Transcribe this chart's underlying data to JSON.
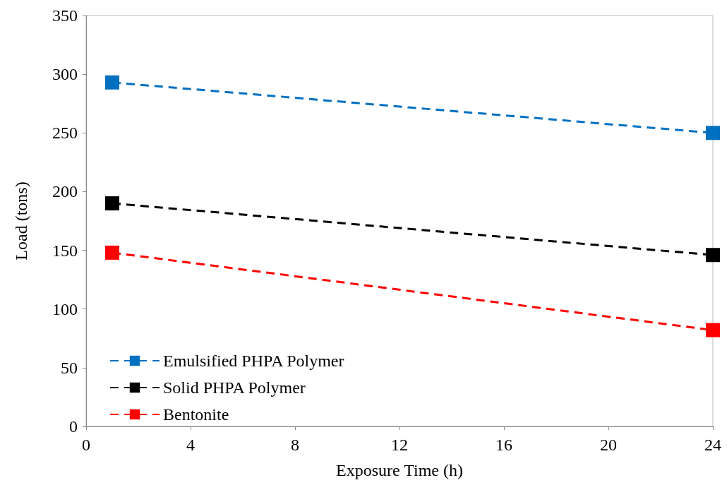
{
  "chart_data": {
    "type": "line",
    "xlabel": "Exposure Time (h)",
    "ylabel": "Load (tons)",
    "xlim": [
      0,
      24
    ],
    "xticks": [
      0,
      4,
      8,
      12,
      16,
      20,
      24
    ],
    "ylim": [
      0,
      350
    ],
    "yticks": [
      0,
      50,
      100,
      150,
      200,
      250,
      300,
      350
    ],
    "x": [
      1,
      24
    ],
    "grid": false,
    "legend": "bottom left",
    "marker": "square",
    "line_style": "dashed",
    "series": [
      {
        "name": "Emulsified PHPA Polymer",
        "color": "#0070c0",
        "values": [
          293,
          250
        ]
      },
      {
        "name": "Solid PHPA Polymer",
        "color": "#000000",
        "values": [
          190,
          146
        ]
      },
      {
        "name": "Bentonite",
        "color": "#ff0000",
        "values": [
          148,
          82
        ]
      }
    ]
  }
}
